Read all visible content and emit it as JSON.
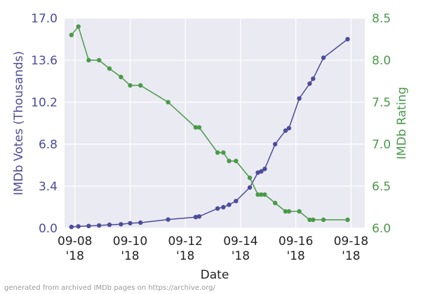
{
  "chart_data": {
    "type": "line",
    "xlabel": "Date",
    "x_ticks": [
      {
        "date": "2018-09-08",
        "line1": "09-08",
        "line2": "'18"
      },
      {
        "date": "2018-09-10",
        "line1": "09-10",
        "line2": "'18"
      },
      {
        "date": "2018-09-12",
        "line1": "09-12",
        "line2": "'18"
      },
      {
        "date": "2018-09-14",
        "line1": "09-14",
        "line2": "'18"
      },
      {
        "date": "2018-09-16",
        "line1": "09-16",
        "line2": "'18"
      },
      {
        "date": "2018-09-18",
        "line1": "09-18",
        "line2": "'18"
      }
    ],
    "xlim": [
      "2018-09-07T15:00",
      "2018-09-18T12:00"
    ],
    "left_axis": {
      "label": "IMDb Votes (Thousands)",
      "ylim": [
        0,
        17
      ],
      "ticks": [
        "0.0",
        "3.4",
        "6.8",
        "10.2",
        "13.6",
        "17.0"
      ],
      "color": "#4c4c9a"
    },
    "right_axis": {
      "label": "IMDb Rating",
      "ylim": [
        6.0,
        8.5
      ],
      "ticks": [
        "6.0",
        "6.5",
        "7.0",
        "7.5",
        "8.0",
        "8.5"
      ],
      "color": "#4a9a4a"
    },
    "grid": true,
    "series": [
      {
        "axis": "left",
        "color": "#4c4c9a",
        "points": [
          [
            "2018-09-07T21:00",
            0.1
          ],
          [
            "2018-09-08T03:00",
            0.15
          ],
          [
            "2018-09-08T12:00",
            0.18
          ],
          [
            "2018-09-08T21:00",
            0.22
          ],
          [
            "2018-09-09T06:00",
            0.28
          ],
          [
            "2018-09-09T16:00",
            0.32
          ],
          [
            "2018-09-10T00:00",
            0.4
          ],
          [
            "2018-09-10T09:00",
            0.45
          ],
          [
            "2018-09-11T09:00",
            0.7
          ],
          [
            "2018-09-12T09:00",
            0.9
          ],
          [
            "2018-09-12T12:00",
            0.95
          ],
          [
            "2018-09-13T04:00",
            1.6
          ],
          [
            "2018-09-13T09:00",
            1.7
          ],
          [
            "2018-09-13T14:00",
            1.9
          ],
          [
            "2018-09-13T20:00",
            2.2
          ],
          [
            "2018-09-14T08:00",
            3.3
          ],
          [
            "2018-09-14T15:00",
            4.5
          ],
          [
            "2018-09-14T18:00",
            4.6
          ],
          [
            "2018-09-14T21:00",
            4.8
          ],
          [
            "2018-09-15T06:00",
            6.8
          ],
          [
            "2018-09-15T15:00",
            7.9
          ],
          [
            "2018-09-15T18:00",
            8.1
          ],
          [
            "2018-09-16T03:00",
            10.5
          ],
          [
            "2018-09-16T12:00",
            11.7
          ],
          [
            "2018-09-16T15:00",
            12.1
          ],
          [
            "2018-09-17T00:00",
            13.8
          ],
          [
            "2018-09-17T21:00",
            15.3
          ]
        ]
      },
      {
        "axis": "right",
        "color": "#4a9a4a",
        "points": [
          [
            "2018-09-07T21:00",
            8.3
          ],
          [
            "2018-09-08T03:00",
            8.4
          ],
          [
            "2018-09-08T12:00",
            8.0
          ],
          [
            "2018-09-08T21:00",
            8.0
          ],
          [
            "2018-09-09T06:00",
            7.9
          ],
          [
            "2018-09-09T16:00",
            7.8
          ],
          [
            "2018-09-10T00:00",
            7.7
          ],
          [
            "2018-09-10T09:00",
            7.7
          ],
          [
            "2018-09-11T09:00",
            7.5
          ],
          [
            "2018-09-12T09:00",
            7.2
          ],
          [
            "2018-09-12T12:00",
            7.2
          ],
          [
            "2018-09-13T04:00",
            6.9
          ],
          [
            "2018-09-13T09:00",
            6.9
          ],
          [
            "2018-09-13T14:00",
            6.8
          ],
          [
            "2018-09-13T20:00",
            6.8
          ],
          [
            "2018-09-14T08:00",
            6.6
          ],
          [
            "2018-09-14T15:00",
            6.4
          ],
          [
            "2018-09-14T18:00",
            6.4
          ],
          [
            "2018-09-14T21:00",
            6.4
          ],
          [
            "2018-09-15T06:00",
            6.3
          ],
          [
            "2018-09-15T15:00",
            6.2
          ],
          [
            "2018-09-15T18:00",
            6.2
          ],
          [
            "2018-09-16T03:00",
            6.2
          ],
          [
            "2018-09-16T12:00",
            6.1
          ],
          [
            "2018-09-16T15:00",
            6.1
          ],
          [
            "2018-09-17T00:00",
            6.1
          ],
          [
            "2018-09-17T21:00",
            6.1
          ]
        ]
      }
    ]
  },
  "footer": "generated from archived IMDb pages on https://archive.org/"
}
